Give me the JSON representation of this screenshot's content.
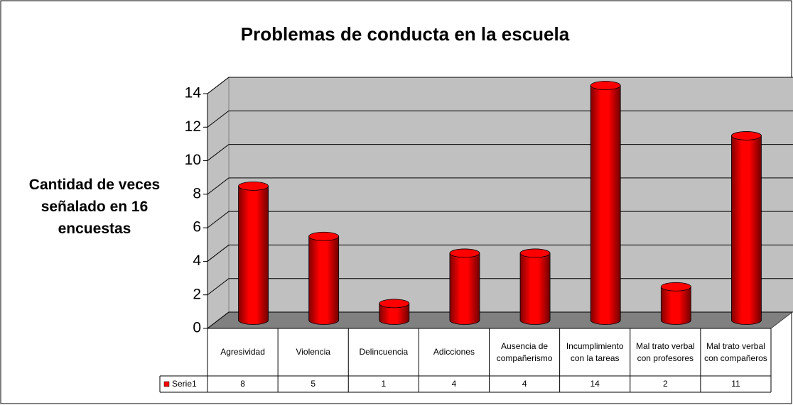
{
  "chart_data": {
    "type": "bar",
    "title": "Problemas de conducta en la escuela",
    "y_label": "Cantidad de veces señalado en 16 encuestas",
    "categories": [
      "Agresividad",
      "Violencia",
      "Delincuencia",
      "Adicciones",
      "Ausencia de compañerismo",
      "Incumplimiento con la tareas",
      "Mal trato verbal con profesores",
      "Mal trato verbal con compañeros"
    ],
    "series": [
      {
        "name": "Serie1",
        "color": "#ff0000",
        "values": [
          8,
          5,
          1,
          4,
          4,
          14,
          2,
          11
        ]
      }
    ],
    "ylim": [
      0,
      14
    ],
    "yticks": [
      0,
      2,
      4,
      6,
      8,
      10,
      12,
      14
    ],
    "grid": true
  }
}
